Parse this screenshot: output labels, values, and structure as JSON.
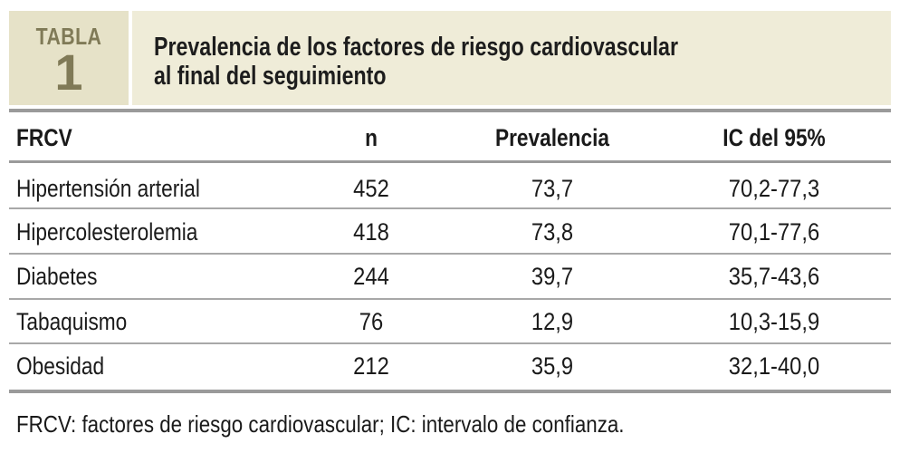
{
  "header": {
    "label_word": "TABLA",
    "label_number": "1",
    "title": "Prevalencia de los factores de riesgo cardiovascular\nal final del seguimiento"
  },
  "table": {
    "columns": [
      "FRCV",
      "n",
      "Prevalencia",
      "IC del 95%"
    ],
    "rows": [
      [
        "Hipertensión arterial",
        "452",
        "73,7",
        "70,2-77,3"
      ],
      [
        "Hipercolesterolemia",
        "418",
        "73,8",
        "70,1-77,6"
      ],
      [
        "Diabetes",
        "244",
        "39,7",
        "35,7-43,6"
      ],
      [
        "Tabaquismo",
        "76",
        "12,9",
        "10,3-15,9"
      ],
      [
        "Obesidad",
        "212",
        "35,9",
        "32,1-40,0"
      ]
    ]
  },
  "footnote": "FRCV: factores de riesgo cardiovascular; IC: intervalo de confianza.",
  "colors": {
    "label_bg": "#e6e2c8",
    "title_bg": "#efecd8",
    "label_text": "#807a57",
    "rule": "#9a9a9a"
  }
}
